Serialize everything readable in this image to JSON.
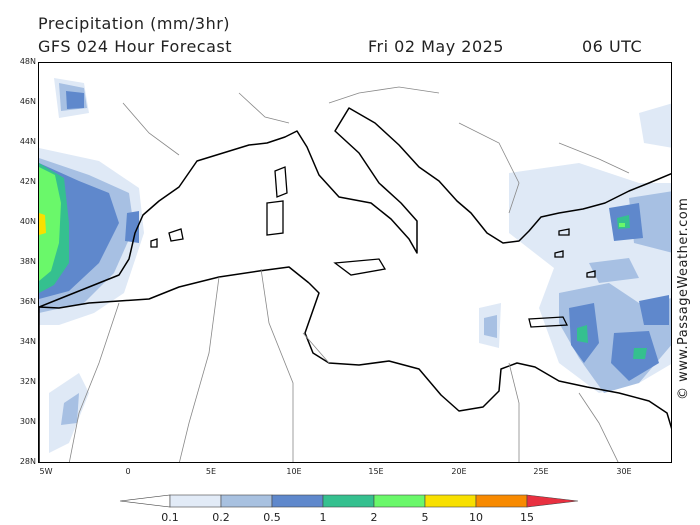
{
  "header": {
    "title": "Precipitation (mm/3hr)",
    "subtitle": "GFS 024 Hour Forecast",
    "date": "Fri 02 May 2025",
    "time": "06 UTC"
  },
  "axes": {
    "lat_labels": [
      "48N",
      "46N",
      "44N",
      "42N",
      "40N",
      "38N",
      "36N",
      "34N",
      "32N",
      "30N",
      "28N"
    ],
    "lon_labels": [
      "5W",
      "0",
      "5E",
      "10E",
      "15E",
      "20E",
      "25E",
      "30E"
    ]
  },
  "credit": "© www.PassageWeather.com",
  "legend": {
    "labels": [
      "0.1",
      "0.2",
      "0.5",
      "1",
      "2",
      "5",
      "10",
      "15"
    ],
    "colors": [
      "#ffffff",
      "#e2ebf7",
      "#a8c1e0",
      "#5f88cc",
      "#35c08f",
      "#6af86a",
      "#f8e000",
      "#f88a00",
      "#e83040"
    ]
  },
  "colors": {
    "coast": "#000000",
    "borders": "#888888",
    "light": "#dfe9f6",
    "medium": "#a7c0e3",
    "blue": "#5f88cc",
    "teal": "#35c08f",
    "green": "#6af86a",
    "yellow": "#f8e000"
  }
}
